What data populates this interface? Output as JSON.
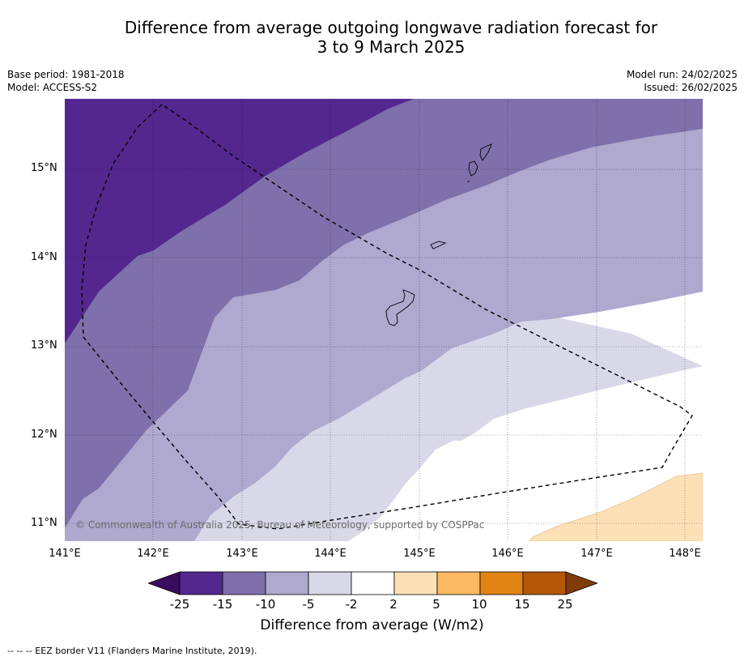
{
  "title_line1": "Difference from average outgoing longwave radiation forecast for",
  "title_line2": "3 to 9 March 2025",
  "base_period": "Base period: 1981-2018",
  "model": "Model: ACCESS-S2",
  "model_run": "Model run: 24/02/2025",
  "issued": "Issued: 26/02/2025",
  "lat_labels": [
    "15°N",
    "14°N",
    "13°N",
    "12°N",
    "11°N"
  ],
  "lon_labels": [
    "141°E",
    "142°E",
    "143°E",
    "144°E",
    "145°E",
    "146°E",
    "147°E",
    "148°E"
  ],
  "copyright": "© Commonwealth of Australia 2025, Bureau of Meteorology, supported by COSPPac",
  "colorbar": {
    "ticks": [
      "-25",
      "-15",
      "-10",
      "-5",
      "-2",
      "2",
      "5",
      "10",
      "15",
      "25"
    ],
    "colors": [
      "#3b0c5e",
      "#54278f",
      "#7e70ab",
      "#afa8cf",
      "#d9d8e9",
      "#ffffff",
      "#fde0b6",
      "#fdb863",
      "#e08214",
      "#b35806",
      "#7f3b08"
    ],
    "label": "Difference from average (W/m2)"
  },
  "footnote": "--  --  -- EEZ border V11 (Flanders Marine Institute, 2019)."
}
